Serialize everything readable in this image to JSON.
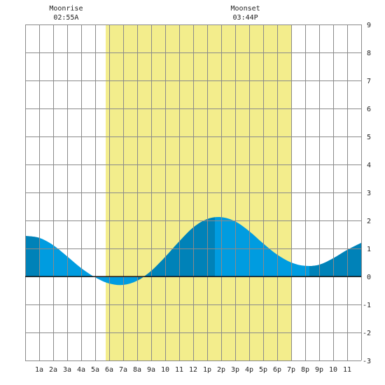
{
  "chart_data": {
    "type": "area",
    "title": "",
    "xlabel": "",
    "ylabel": "",
    "x_ticks": [
      {
        "hour": 1,
        "label": "1a"
      },
      {
        "hour": 2,
        "label": "2a"
      },
      {
        "hour": 3,
        "label": "3a"
      },
      {
        "hour": 4,
        "label": "4a"
      },
      {
        "hour": 5,
        "label": "5a"
      },
      {
        "hour": 6,
        "label": "6a"
      },
      {
        "hour": 7,
        "label": "7a"
      },
      {
        "hour": 8,
        "label": "8a"
      },
      {
        "hour": 9,
        "label": "9a"
      },
      {
        "hour": 10,
        "label": "10"
      },
      {
        "hour": 11,
        "label": "11"
      },
      {
        "hour": 12,
        "label": "12"
      },
      {
        "hour": 13,
        "label": "1p"
      },
      {
        "hour": 14,
        "label": "2p"
      },
      {
        "hour": 15,
        "label": "3p"
      },
      {
        "hour": 16,
        "label": "4p"
      },
      {
        "hour": 17,
        "label": "5p"
      },
      {
        "hour": 18,
        "label": "6p"
      },
      {
        "hour": 19,
        "label": "7p"
      },
      {
        "hour": 20,
        "label": "8p"
      },
      {
        "hour": 21,
        "label": "9p"
      },
      {
        "hour": 22,
        "label": "10"
      },
      {
        "hour": 23,
        "label": "11"
      }
    ],
    "y_ticks": [
      9,
      8,
      7,
      6,
      5,
      4,
      3,
      2,
      1,
      0,
      -1,
      -2,
      -3
    ],
    "xlim": [
      0,
      24
    ],
    "ylim": [
      -3,
      9
    ],
    "grid": true,
    "daylight": {
      "start_hour": 5.75,
      "end_hour": 19.0
    },
    "tide_curve": {
      "x": [
        0,
        1,
        2,
        3,
        4,
        5,
        6,
        7,
        8,
        9,
        10,
        11,
        12,
        13,
        14,
        15,
        16,
        17,
        18,
        19,
        20,
        21,
        22,
        23,
        24
      ],
      "y": [
        1.45,
        1.38,
        1.12,
        0.72,
        0.3,
        -0.03,
        -0.25,
        -0.3,
        -0.15,
        0.2,
        0.7,
        1.25,
        1.75,
        2.05,
        2.12,
        1.97,
        1.62,
        1.18,
        0.78,
        0.5,
        0.38,
        0.42,
        0.65,
        0.95,
        1.2
      ]
    },
    "dark_segments": [
      {
        "from": 0.0,
        "to": 1.0
      },
      {
        "from": 8.0,
        "to": 13.55
      },
      {
        "from": 20.3,
        "to": 24.0
      }
    ],
    "moon_events": [
      {
        "label": "Moonrise",
        "time": "02:55A",
        "hour": 2.92
      },
      {
        "label": "Moonset",
        "time": "03:44P",
        "hour": 15.73
      }
    ],
    "colors": {
      "water_light": "#009ce0",
      "water_dark": "#0082b8",
      "daylight": "#f3ed8c",
      "grid": "#8a8a8a",
      "zero_line": "#000000"
    }
  }
}
